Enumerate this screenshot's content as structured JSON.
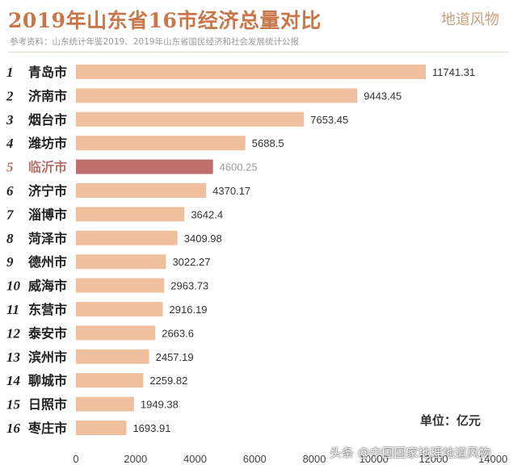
{
  "header": {
    "title": "2019年山东省16市经济总量对比",
    "brand": "地道风物",
    "source": "参考资料：山东统计年鉴2019、2019年山东省国民经济和社会发展统计公报"
  },
  "unit_label": "单位：亿元",
  "watermark": "头条 @中国国家地理地道风物",
  "colors": {
    "bar": "#efc09e",
    "highlight_bar": "#bf6f6c",
    "highlight_text": "#b5706c",
    "text": "#222222",
    "value_text": "#333333",
    "highlight_value": "#9a9a9a"
  },
  "chart_data": {
    "type": "bar",
    "orientation": "horizontal",
    "title": "2019年山东省16市经济总量对比",
    "xlim": [
      0,
      14000
    ],
    "x_ticks": [
      0,
      2000,
      4000,
      6000,
      8000,
      10000,
      12000,
      14000
    ],
    "ranks": [
      "1",
      "2",
      "3",
      "4",
      "5",
      "6",
      "7",
      "8",
      "9",
      "10",
      "11",
      "12",
      "13",
      "14",
      "15",
      "16"
    ],
    "categories": [
      "青岛市",
      "济南市",
      "烟台市",
      "潍坊市",
      "临沂市",
      "济宁市",
      "淄博市",
      "菏泽市",
      "德州市",
      "威海市",
      "东营市",
      "泰安市",
      "滨州市",
      "聊城市",
      "日照市",
      "枣庄市"
    ],
    "values": [
      11741.31,
      9443.45,
      7653.45,
      5688.5,
      4600.25,
      4370.17,
      3642.4,
      3409.98,
      3022.27,
      2963.73,
      2916.19,
      2663.6,
      2457.19,
      2259.82,
      1949.38,
      1693.91
    ],
    "value_labels": [
      "11741.31",
      "9443.45",
      "7653.45",
      "5688.5",
      "4600.25",
      "4370.17",
      "3642.4",
      "3409.98",
      "3022.27",
      "2963.73",
      "2916.19",
      "2663.6",
      "2457.19",
      "2259.82",
      "1949.38",
      "1693.91"
    ],
    "highlight_index": 4,
    "unit": "亿元"
  }
}
